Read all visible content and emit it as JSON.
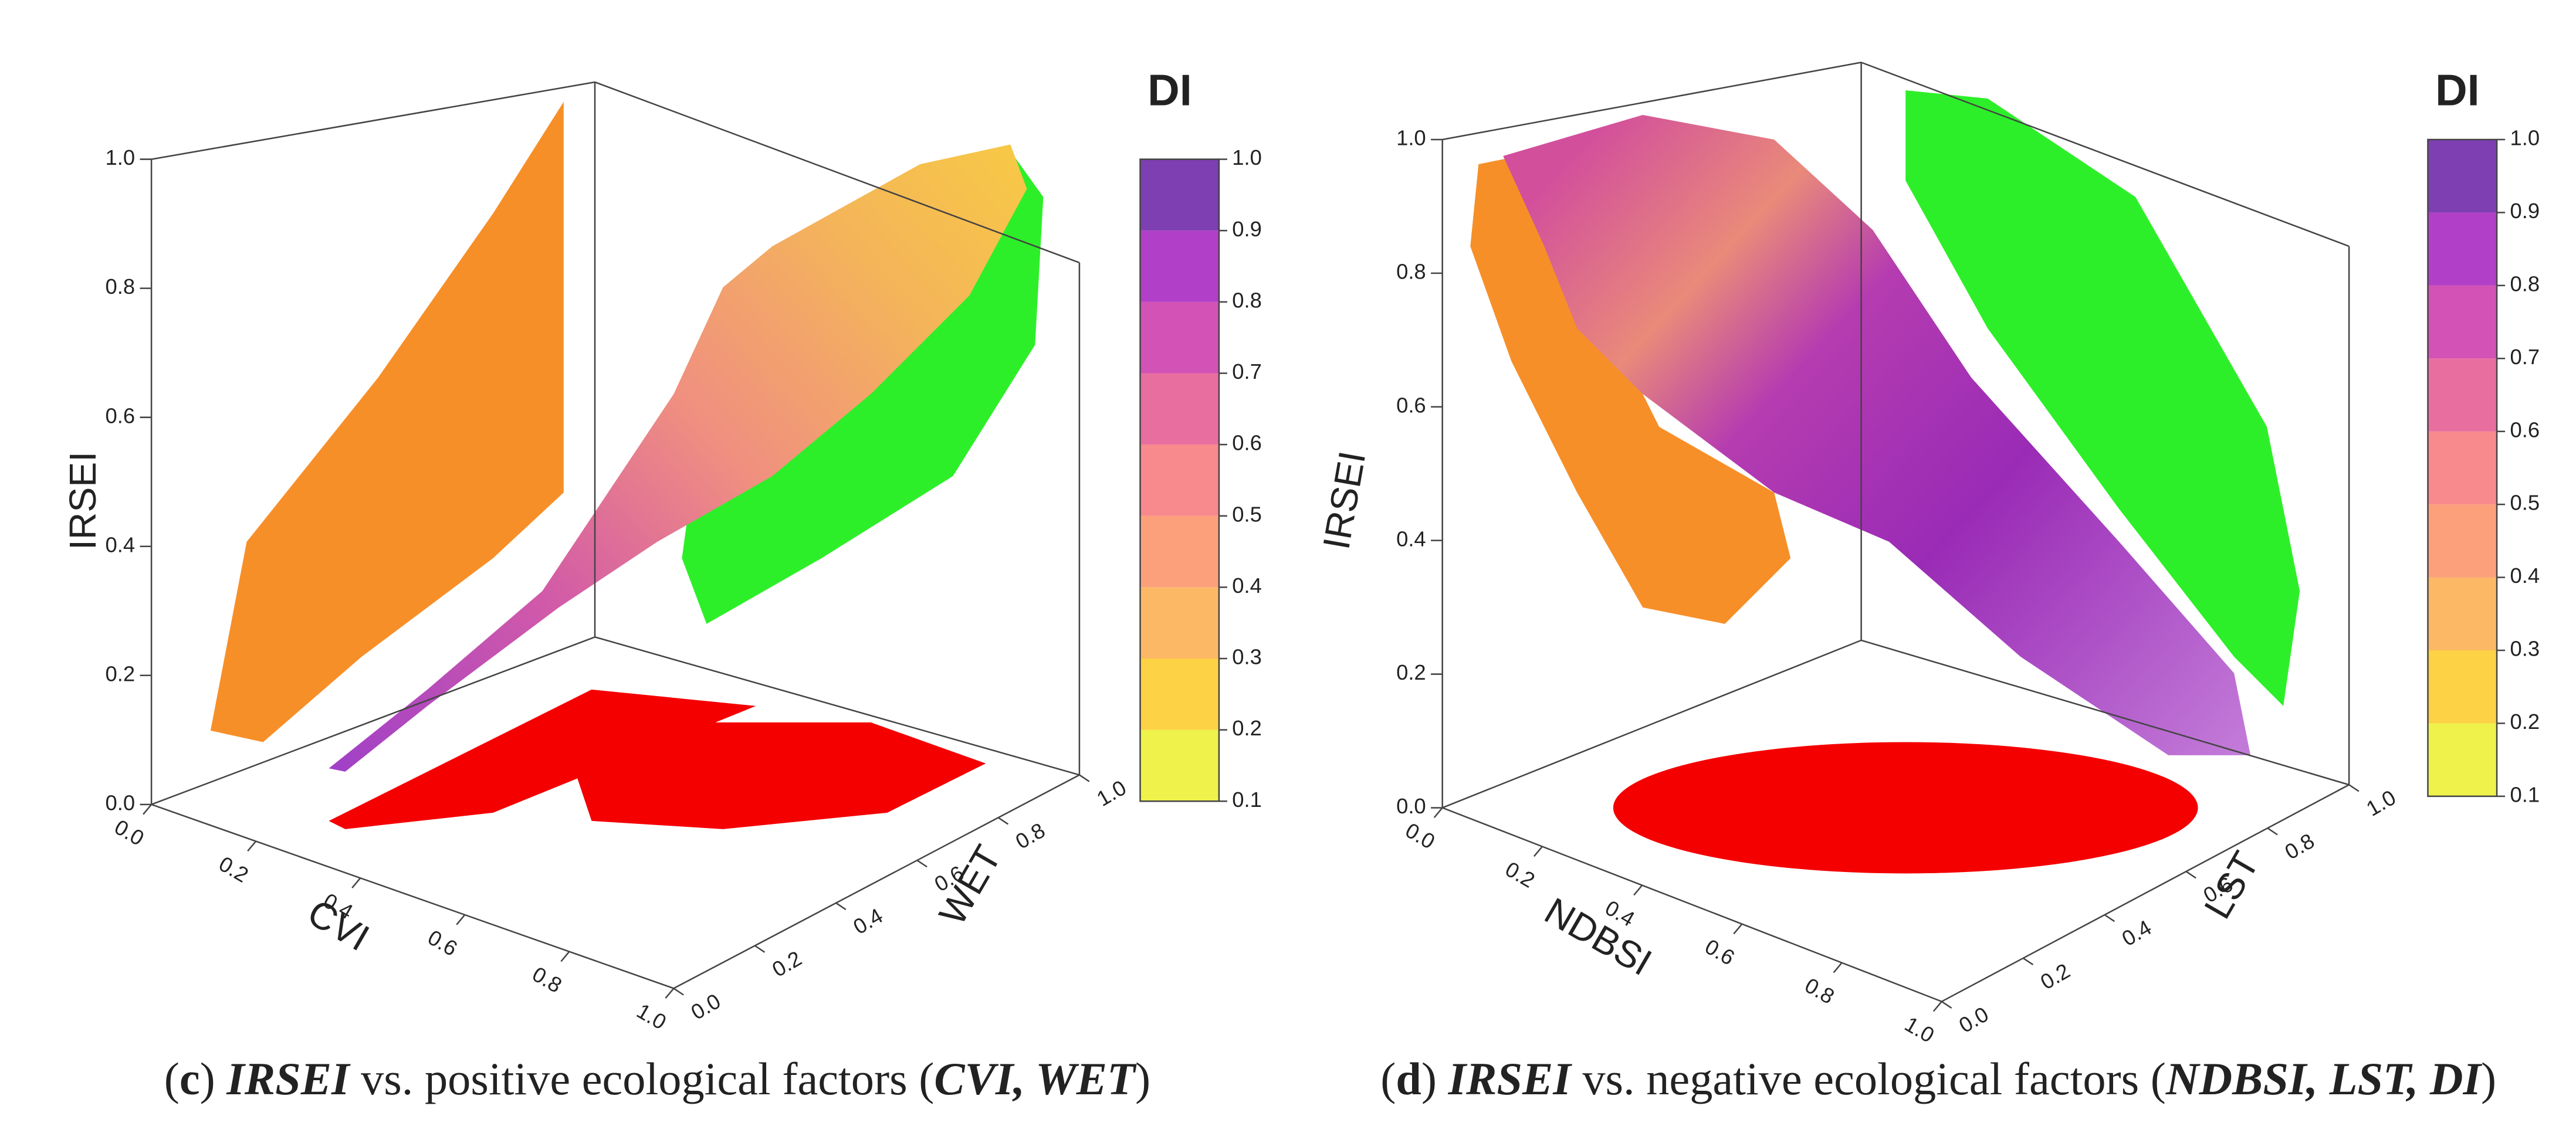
{
  "chart_data": [
    {
      "type": "scatter3d",
      "z_label": "IRSEI",
      "x_label": "CVI",
      "y_label": "WET",
      "zlim": [
        0,
        1
      ],
      "zticks": [
        {
          "value": 0,
          "label": "0.0"
        },
        0.2,
        0.4,
        0.6,
        0.8,
        {
          "value": 1,
          "label": "1.0"
        }
      ],
      "xlim": [
        0,
        1
      ],
      "xticks": [
        {
          "value": 0,
          "label": "0.0"
        },
        0.2,
        0.4,
        0.6,
        0.8,
        {
          "value": 1,
          "label": "1.0"
        }
      ],
      "ylim": [
        0,
        1
      ],
      "yticks": [
        {
          "value": 0,
          "label": "0.0"
        },
        0.2,
        0.4,
        0.6,
        0.8,
        {
          "value": 1,
          "label": "1.0"
        }
      ],
      "colorbar": {
        "title": "DI",
        "lim": [
          0.1,
          1
        ],
        "ticks": [
          0.1,
          0.2,
          0.3,
          0.4,
          0.5,
          0.6,
          0.7,
          0.8,
          0.9,
          {
            "value": 1,
            "label": "1.0"
          }
        ],
        "colors": [
          "#eef24a",
          "#fdd245",
          "#fdb866",
          "#fca07c",
          "#f8898c",
          "#e96ea0",
          "#d252b6",
          "#b23fc8",
          "#7e3fb2"
        ]
      },
      "caption": [
        "(",
        "c",
        ") ",
        "IRSEI",
        " vs. positive ecological factors (",
        "CVI, WET",
        ")"
      ]
    },
    {
      "type": "scatter3d",
      "z_label": "IRSEI",
      "x_label": "NDBSI",
      "y_label": "LST",
      "zlim": [
        0,
        1
      ],
      "zticks": [
        {
          "value": 0,
          "label": "0.0"
        },
        0.2,
        0.4,
        0.6,
        0.8,
        {
          "value": 1,
          "label": "1.0"
        }
      ],
      "xlim": [
        0,
        1
      ],
      "xticks": [
        {
          "value": 0,
          "label": "0.0"
        },
        0.2,
        0.4,
        0.6,
        0.8,
        {
          "value": 1,
          "label": "1.0"
        }
      ],
      "ylim": [
        0,
        1
      ],
      "yticks": [
        {
          "value": 0,
          "label": "0.0"
        },
        0.2,
        0.4,
        0.6,
        0.8,
        {
          "value": 1,
          "label": "1.0"
        }
      ],
      "colorbar": {
        "title": "DI",
        "lim": [
          0.1,
          1
        ],
        "ticks": [
          0.1,
          0.2,
          0.3,
          0.4,
          0.5,
          0.6,
          0.7,
          0.8,
          0.9,
          {
            "value": 1,
            "label": "1.0"
          }
        ],
        "colors": [
          "#eef24a",
          "#fdd245",
          "#fdb866",
          "#fca07c",
          "#f8898c",
          "#e96ea0",
          "#d252b6",
          "#b23fc8",
          "#7e3fb2"
        ]
      },
      "caption": [
        "(",
        "d",
        ") ",
        "IRSEI",
        " vs. negative ecological factors (",
        "NDBSI, LST, DI",
        ")"
      ]
    }
  ]
}
